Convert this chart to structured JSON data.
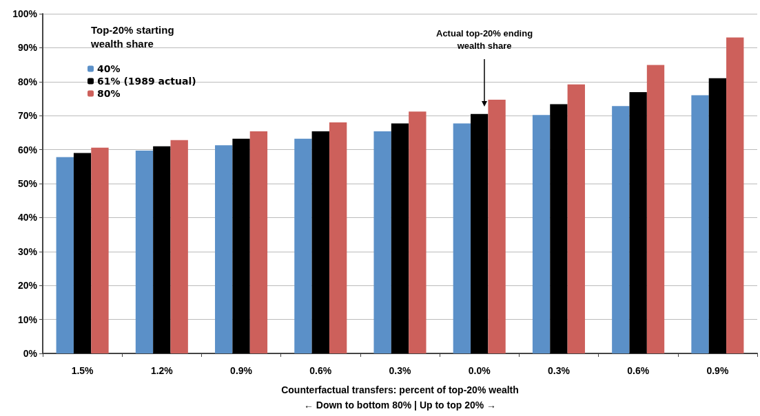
{
  "chart_data": {
    "type": "bar",
    "xlabel": "Counterfactual transfers: percent of top-20% wealth\n← Down to bottom 80% | Up to top 20% →",
    "legend_title": "Top-20% starting wealth share",
    "categories": [
      "1.5%",
      "1.2%",
      "0.9%",
      "0.6%",
      "0.3%",
      "0.0%",
      "0.3%",
      "0.6%",
      "0.9%"
    ],
    "series": [
      {
        "name": "40%",
        "color": "#5b90c8",
        "values": [
          57.8,
          59.7,
          61.3,
          63.2,
          65.4,
          67.7,
          70.2,
          72.8,
          76
        ]
      },
      {
        "name": "61% (1989 actual)",
        "color": "#000000",
        "values": [
          59,
          61,
          63.2,
          65.4,
          67.7,
          70.5,
          73.4,
          76.9,
          81
        ]
      },
      {
        "name": "80%",
        "color": "#cd605b",
        "values": [
          60.6,
          62.8,
          65.4,
          68,
          71.2,
          74.7,
          79.2,
          84.9,
          93
        ]
      }
    ],
    "ylim": [
      0,
      100
    ],
    "yticks": [
      {
        "value": 0,
        "label": "0%"
      },
      {
        "value": 10,
        "label": "10%"
      },
      {
        "value": 20,
        "label": "20%"
      },
      {
        "value": 30,
        "label": "30%"
      },
      {
        "value": 40,
        "label": "40%"
      },
      {
        "value": 50,
        "label": "50%"
      },
      {
        "value": 60,
        "label": "60%"
      },
      {
        "value": 70,
        "label": "70%"
      },
      {
        "value": 80,
        "label": "80%"
      },
      {
        "value": 90,
        "label": "90%"
      },
      {
        "value": 100,
        "label": "100%"
      }
    ],
    "grid": "y",
    "legend": "top left",
    "annotations": [
      "Actual top-20% ending\nwealth share"
    ]
  }
}
